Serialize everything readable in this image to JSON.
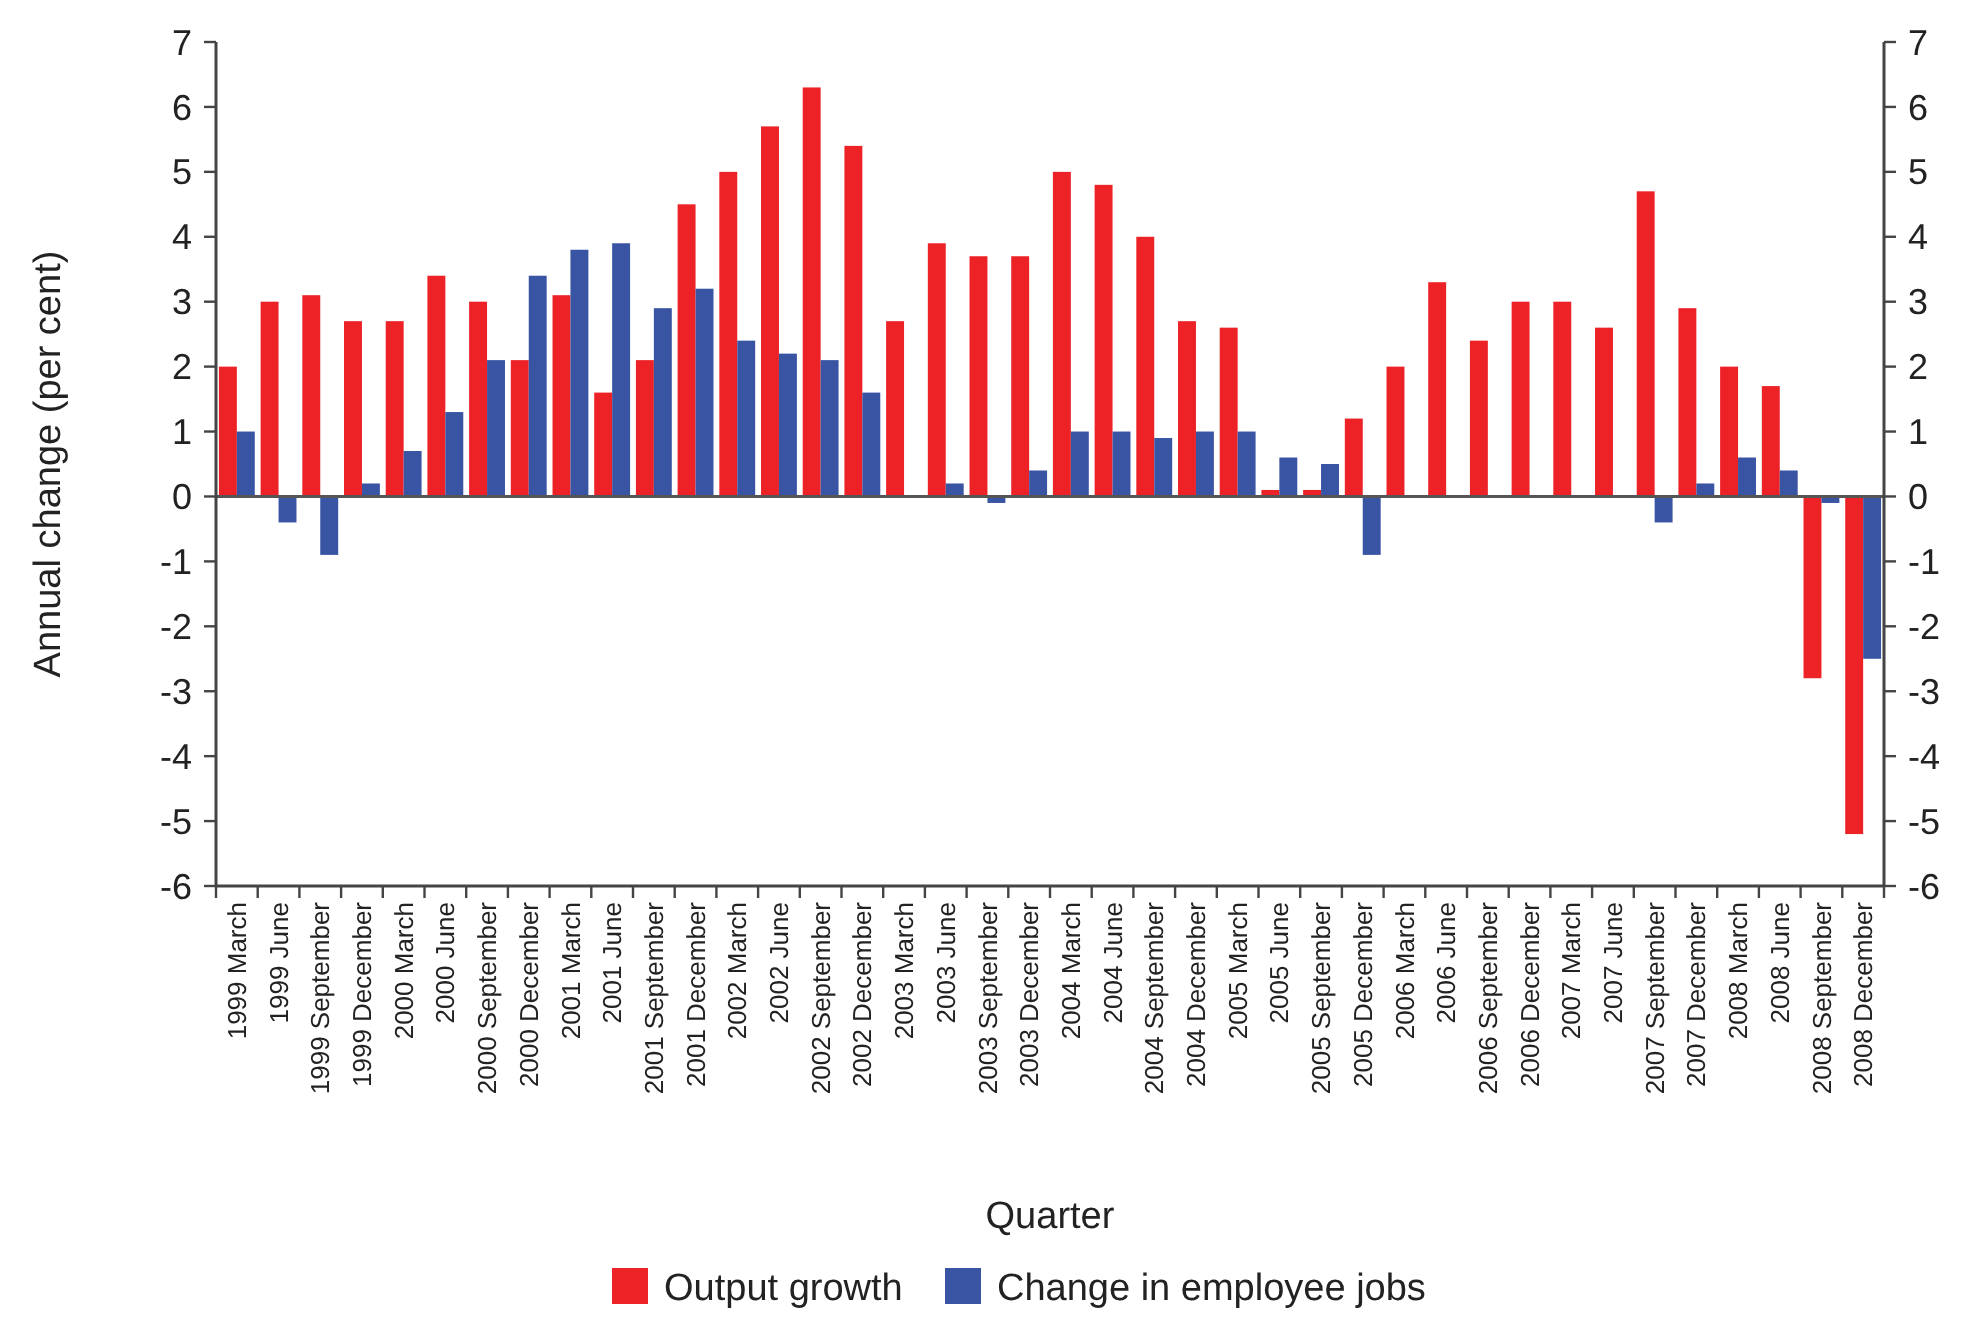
{
  "chart_data": {
    "type": "bar",
    "xlabel": "Quarter",
    "ylabel": "Annual change (per cent)",
    "categories": [
      "1999 March",
      "1999 June",
      "1999 September",
      "1999 December",
      "2000 March",
      "2000 June",
      "2000 September",
      "2000 December",
      "2001 March",
      "2001 June",
      "2001 September",
      "2001 December",
      "2002 March",
      "2002 June",
      "2002 September",
      "2002 December",
      "2003 March",
      "2003 June",
      "2003 September",
      "2003 December",
      "2004 March",
      "2004 June",
      "2004 September",
      "2004 December",
      "2005 March",
      "2005 June",
      "2005 September",
      "2005 December",
      "2006 March",
      "2006 June",
      "2006 September",
      "2006 December",
      "2007 March",
      "2007 June",
      "2007 September",
      "2007 December",
      "2008 March",
      "2008 June",
      "2008 September",
      "2008 December"
    ],
    "series": [
      {
        "name": "Output growth",
        "color": "#ed2227",
        "values": [
          2.0,
          3.0,
          3.1,
          2.7,
          2.7,
          3.4,
          3.0,
          2.1,
          3.1,
          1.6,
          2.1,
          4.5,
          5.0,
          5.7,
          6.3,
          5.4,
          2.7,
          3.9,
          3.7,
          3.7,
          5.0,
          4.8,
          4.0,
          2.7,
          2.6,
          0.1,
          0.1,
          1.2,
          2.0,
          3.3,
          2.4,
          3.0,
          3.0,
          2.6,
          4.7,
          2.9,
          2.0,
          1.7,
          -2.8,
          -5.2
        ]
      },
      {
        "name": "Change in employee jobs",
        "color": "#3a54a4",
        "values": [
          1.0,
          -0.4,
          -0.9,
          0.2,
          0.7,
          1.3,
          2.1,
          3.4,
          3.8,
          3.9,
          2.9,
          3.2,
          2.4,
          2.2,
          2.1,
          1.6,
          0.0,
          0.2,
          -0.1,
          0.4,
          1.0,
          1.0,
          0.9,
          1.0,
          1.0,
          0.6,
          0.5,
          -0.9,
          0,
          0,
          0,
          0,
          0,
          0,
          -0.4,
          0.2,
          0.6,
          0.4,
          -0.1,
          -2.5
        ]
      }
    ],
    "ylim": [
      -6,
      7
    ],
    "yticks": [
      -6,
      -5,
      -4,
      -3,
      -2,
      -1,
      0,
      1,
      2,
      3,
      4,
      5,
      6,
      7
    ],
    "y2lim": [
      -6,
      7
    ],
    "y2ticks": [
      -6,
      -5,
      -4,
      -3,
      -2,
      -1,
      0,
      1,
      2,
      3,
      4,
      5,
      6,
      7
    ],
    "ref_lines": [
      {
        "axis": "y",
        "value": 0,
        "color": "#555555"
      }
    ],
    "legend": "bottom"
  }
}
